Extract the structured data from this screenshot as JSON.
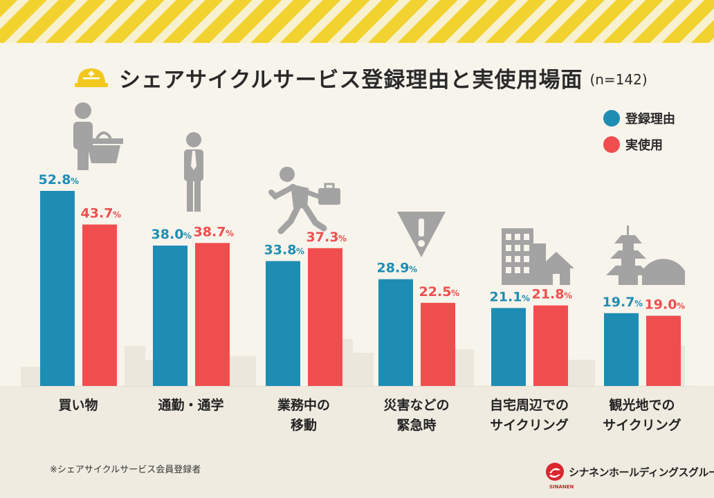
{
  "title": "シェアサイクルサービス登録理由と実使用場面",
  "title_n": "(n=142)",
  "footnote": "※シェアサイクルサービス会員登録者",
  "logo": {
    "text": "シナネンホールディングスグループ",
    "sub": "SINANEN"
  },
  "colors": {
    "registration": "#1e8db4",
    "actual": "#f04e4e",
    "stripe": "#f2d22e"
  },
  "chart_data": {
    "type": "bar",
    "title": "シェアサイクルサービス登録理由と実使用場面",
    "categories": [
      "買い物",
      "通勤・通学",
      "業務中の\n移動",
      "災害などの\n緊急時",
      "自宅周辺での\nサイクリング",
      "観光地での\nサイクリング"
    ],
    "series": [
      {
        "name": "登録理由",
        "values": [
          52.8,
          38.0,
          33.8,
          28.9,
          21.1,
          19.7
        ],
        "labels": [
          "52.8",
          "38.0",
          "33.8",
          "28.9",
          "21.1",
          "19.7"
        ]
      },
      {
        "name": "実使用",
        "values": [
          43.7,
          38.7,
          37.3,
          22.5,
          21.8,
          19.0
        ],
        "labels": [
          "43.7",
          "38.7",
          "37.3",
          "22.5",
          "21.8",
          "19.0"
        ]
      }
    ],
    "unit": "%",
    "ylim": [
      0,
      60
    ],
    "legend": "top-right",
    "icons": [
      "shopping-basket-icon",
      "businessman-icon",
      "running-businessman-icon",
      "warning-icon",
      "buildings-house-icon",
      "pagoda-temple-icon"
    ]
  }
}
